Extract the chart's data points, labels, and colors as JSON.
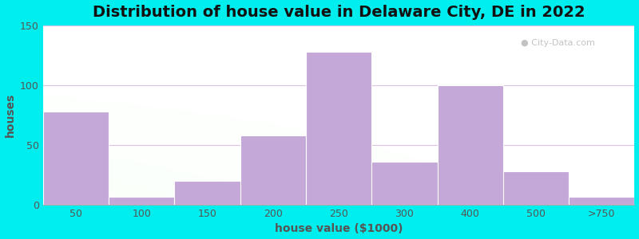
{
  "title": "Distribution of house value in Delaware City, DE in 2022",
  "xlabel": "house value ($1000)",
  "ylabel": "houses",
  "tick_labels": [
    "50",
    "100",
    "150",
    "200",
    "250",
    "300",
    "400",
    "500",
    ">750"
  ],
  "bar_lefts": [
    0,
    1,
    2,
    3,
    4,
    5,
    6,
    7,
    8
  ],
  "bar_widths": [
    1,
    1,
    1,
    1,
    1,
    1,
    1,
    1,
    1
  ],
  "values": [
    78,
    7,
    20,
    58,
    128,
    36,
    100,
    28,
    7
  ],
  "bar_color": "#c4a8d8",
  "bar_edgecolor": "#b090c8",
  "ylim": [
    0,
    150
  ],
  "yticks": [
    0,
    50,
    100,
    150
  ],
  "outer_bg_color": "#00EEEE",
  "grid_color": "#e0c0e8",
  "title_fontsize": 14,
  "axis_label_fontsize": 10,
  "tick_fontsize": 9,
  "watermark_text": "City-Data.com"
}
